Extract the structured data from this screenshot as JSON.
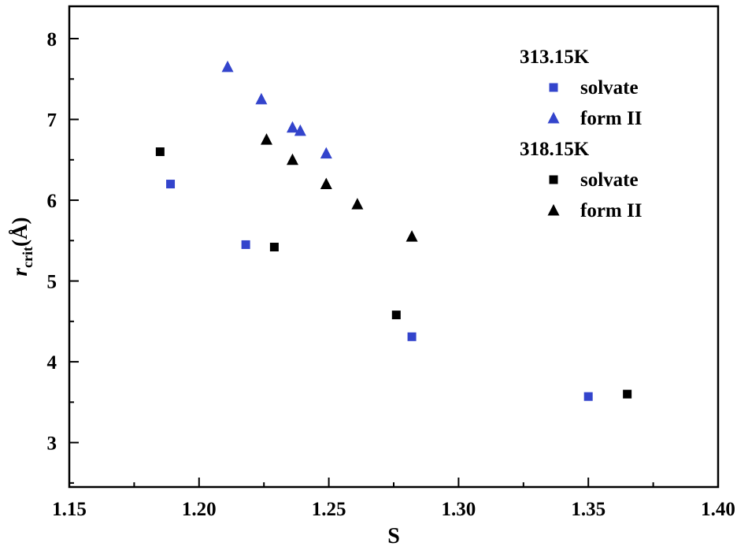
{
  "chart_data": {
    "type": "scatter",
    "title": "",
    "xlabel": "S",
    "ylabel": {
      "symbol": "r",
      "subscript": "crit",
      "unit": "(Å)"
    },
    "xlim": [
      1.15,
      1.4
    ],
    "ylim": [
      2.45,
      8.4
    ],
    "xticks": [
      1.15,
      1.2,
      1.25,
      1.3,
      1.35,
      1.4
    ],
    "yticks": [
      3,
      4,
      5,
      6,
      7,
      8
    ],
    "x_minor_step": 0.025,
    "y_minor_step": 0.5,
    "grid": false,
    "legend_position": "top-right",
    "colors": {
      "blue": "#3344cc",
      "black": "#000000",
      "axis": "#000000"
    },
    "series": [
      {
        "name": "313.15K solvate",
        "temperature": "313.15K",
        "label": "solvate",
        "marker": "square",
        "color": "#3344cc",
        "points": [
          [
            1.189,
            6.2
          ],
          [
            1.218,
            5.45
          ],
          [
            1.282,
            4.31
          ],
          [
            1.35,
            3.57
          ]
        ]
      },
      {
        "name": "313.15K form II",
        "temperature": "313.15K",
        "label": "form II",
        "marker": "triangle",
        "color": "#3344cc",
        "points": [
          [
            1.211,
            7.65
          ],
          [
            1.224,
            7.25
          ],
          [
            1.236,
            6.9
          ],
          [
            1.239,
            6.86
          ],
          [
            1.249,
            6.58
          ]
        ]
      },
      {
        "name": "318.15K solvate",
        "temperature": "318.15K",
        "label": "solvate",
        "marker": "square",
        "color": "#000000",
        "points": [
          [
            1.185,
            6.6
          ],
          [
            1.229,
            5.42
          ],
          [
            1.276,
            4.58
          ],
          [
            1.365,
            3.6
          ]
        ]
      },
      {
        "name": "318.15K form II",
        "temperature": "318.15K",
        "label": "form II",
        "marker": "triangle",
        "color": "#000000",
        "points": [
          [
            1.226,
            6.75
          ],
          [
            1.236,
            6.5
          ],
          [
            1.249,
            6.2
          ],
          [
            1.261,
            5.95
          ],
          [
            1.282,
            5.55
          ]
        ]
      }
    ],
    "legend": {
      "groups": [
        {
          "header": "313.15K",
          "items": [
            {
              "label": "solvate",
              "marker": "square",
              "color": "#3344cc"
            },
            {
              "label": "form II",
              "marker": "triangle",
              "color": "#3344cc"
            }
          ]
        },
        {
          "header": "318.15K",
          "items": [
            {
              "label": "solvate",
              "marker": "square",
              "color": "#000000"
            },
            {
              "label": "form II",
              "marker": "triangle",
              "color": "#000000"
            }
          ]
        }
      ]
    }
  }
}
